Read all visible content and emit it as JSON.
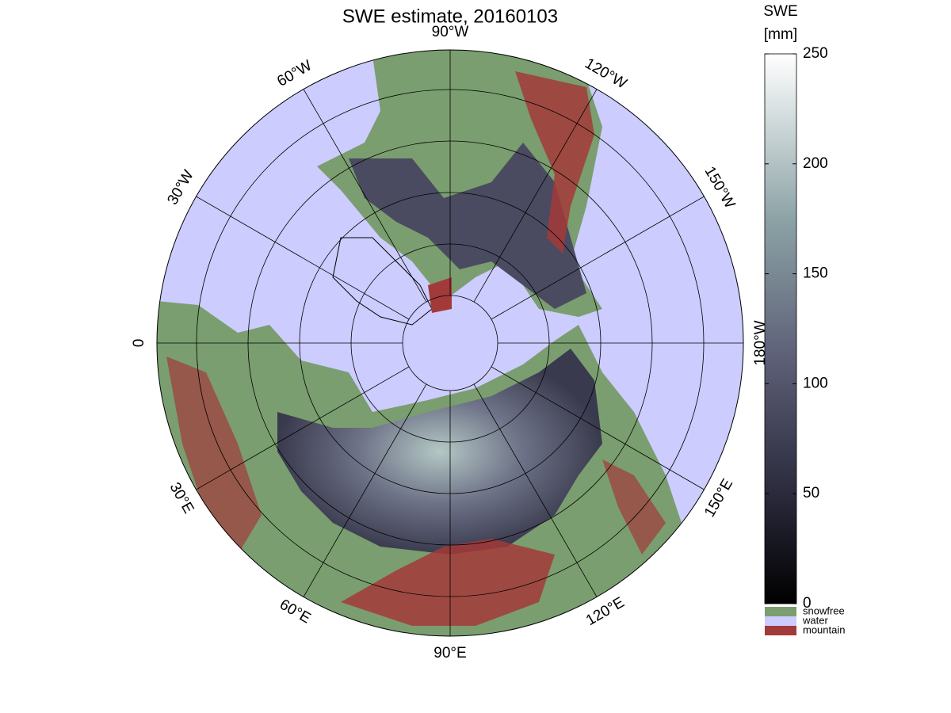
{
  "title": "SWE estimate, 20160103",
  "meridian_labels": [
    "0",
    "30°E",
    "60°E",
    "90°E",
    "120°E",
    "150°E",
    "180°W",
    "150°W",
    "120°W",
    "90°W",
    "60°W",
    "30°W"
  ],
  "colorbar": {
    "label_lines": [
      "SWE",
      "[mm]"
    ],
    "range": [
      0,
      250
    ],
    "ticks": [
      0,
      50,
      100,
      150,
      200,
      250
    ]
  },
  "legend": [
    {
      "label": "snowfree",
      "color": "#7a9e6f"
    },
    {
      "label": "water",
      "color": "#ccccff"
    },
    {
      "label": "mountain",
      "color": "#a33a3a"
    }
  ]
}
